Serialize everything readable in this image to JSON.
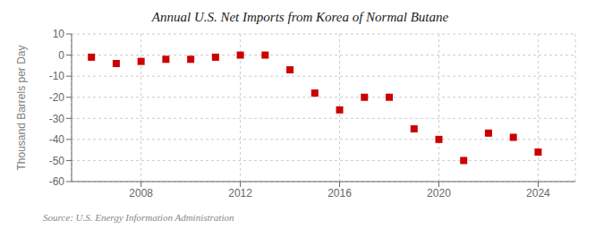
{
  "chart_data": {
    "type": "scatter",
    "title": "Annual U.S. Net Imports from Korea of Normal Butane",
    "ylabel": "Thousand Barrels per Day",
    "annotation": "Source: U.S. Energy Information Administration",
    "x": [
      2006,
      2007,
      2008,
      2009,
      2010,
      2011,
      2012,
      2013,
      2014,
      2015,
      2016,
      2017,
      2018,
      2019,
      2020,
      2021,
      2022,
      2023,
      2024
    ],
    "values": [
      -1,
      -4,
      -3,
      -2,
      -2,
      -1,
      0,
      0,
      -7,
      -18,
      -26,
      -20,
      -20,
      -35,
      -40,
      -50,
      -37,
      -39,
      -46
    ],
    "color": "#cc0000",
    "marker": "square",
    "xlim": [
      2005.2,
      2025.5
    ],
    "xticks": [
      2008,
      2012,
      2016,
      2020,
      2024
    ],
    "ylim": [
      -60,
      10
    ],
    "yticks": [
      10,
      0,
      -10,
      -20,
      -30,
      -40,
      -50,
      -60
    ],
    "grid": true
  }
}
